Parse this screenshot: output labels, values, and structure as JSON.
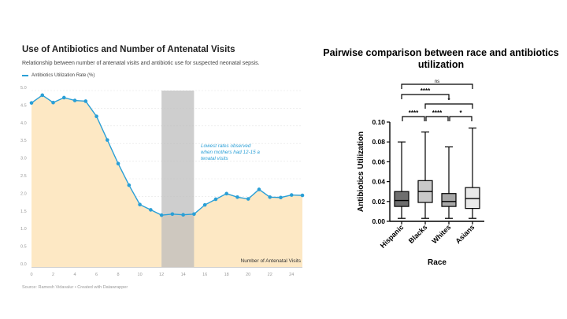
{
  "chart_data": [
    {
      "type": "area",
      "title": "Use of Antibiotics and Number of Antenatal Visits",
      "subtitle": "Relationship between number of antenatal visits and antibiotic use for suspected neonatal sepsis.",
      "legend": [
        "Antibiotics Utilization Rate (%)"
      ],
      "xlabel": "Number of Antenatal Visits",
      "ylabel": "",
      "source": "Source: Ramesh Vidavalur • Created with Datawrapper",
      "annotation": "Lowest rates observed when mothers had 12-15 antenatal visits",
      "highlight_range": [
        12,
        15
      ],
      "xlim": [
        0,
        25
      ],
      "ylim": [
        0,
        5.0
      ],
      "xticks": [
        0,
        2,
        4,
        6,
        8,
        10,
        12,
        14,
        16,
        18,
        20,
        22,
        24
      ],
      "yticks": [
        "0.0",
        "0.5",
        "1.0",
        "1.5",
        "2.0",
        "2.5",
        "3.0",
        "3.5",
        "4.0",
        "4.5",
        "5.0"
      ],
      "x": [
        0,
        1,
        2,
        3,
        4,
        5,
        6,
        7,
        8,
        9,
        10,
        11,
        12,
        13,
        14,
        15,
        16,
        17,
        18,
        19,
        20,
        21,
        22,
        23,
        24,
        25
      ],
      "values": [
        4.65,
        4.87,
        4.66,
        4.8,
        4.72,
        4.7,
        4.27,
        3.6,
        2.93,
        2.32,
        1.77,
        1.62,
        1.47,
        1.5,
        1.48,
        1.5,
        1.76,
        1.92,
        2.08,
        1.98,
        1.93,
        2.2,
        1.98,
        1.97,
        2.04,
        2.03
      ],
      "colors": {
        "line": "#2a9fd6",
        "fill": "#fde8c4",
        "highlight": "#bdbdbd",
        "annotation": "#2a9fd6"
      }
    },
    {
      "type": "box",
      "title": "Pairwise comparison between race and antibiotics utilization",
      "xlabel": "Race",
      "ylabel": "Antibiotics Utilization",
      "ylim": [
        0.0,
        0.1
      ],
      "yticks": [
        "0.00",
        "0.02",
        "0.04",
        "0.06",
        "0.08",
        "0.10"
      ],
      "categories": [
        "Hispanic",
        "Blacks",
        "Whites",
        "Asians"
      ],
      "boxes": [
        {
          "name": "Hispanic",
          "min": 0.003,
          "q1": 0.015,
          "median": 0.021,
          "q3": 0.03,
          "max": 0.08,
          "fill": "#6e6e6e"
        },
        {
          "name": "Blacks",
          "min": 0.003,
          "q1": 0.019,
          "median": 0.03,
          "q3": 0.041,
          "max": 0.09,
          "fill": "#c9c9c9"
        },
        {
          "name": "Whites",
          "min": 0.003,
          "q1": 0.015,
          "median": 0.02,
          "q3": 0.028,
          "max": 0.075,
          "fill": "#a7a7a7"
        },
        {
          "name": "Asians",
          "min": 0.003,
          "q1": 0.013,
          "median": 0.023,
          "q3": 0.034,
          "max": 0.094,
          "fill": "#e9e9e9"
        }
      ],
      "comparisons": [
        {
          "a": 0,
          "b": 3,
          "label": "ns"
        },
        {
          "a": 0,
          "b": 2,
          "label": "****"
        },
        {
          "a": 1,
          "b": 3,
          "label": "*"
        },
        {
          "a": 0,
          "b": 1,
          "label": "****"
        },
        {
          "a": 1,
          "b": 2,
          "label": "****"
        },
        {
          "a": 2,
          "b": 3,
          "label": "*"
        }
      ]
    }
  ]
}
